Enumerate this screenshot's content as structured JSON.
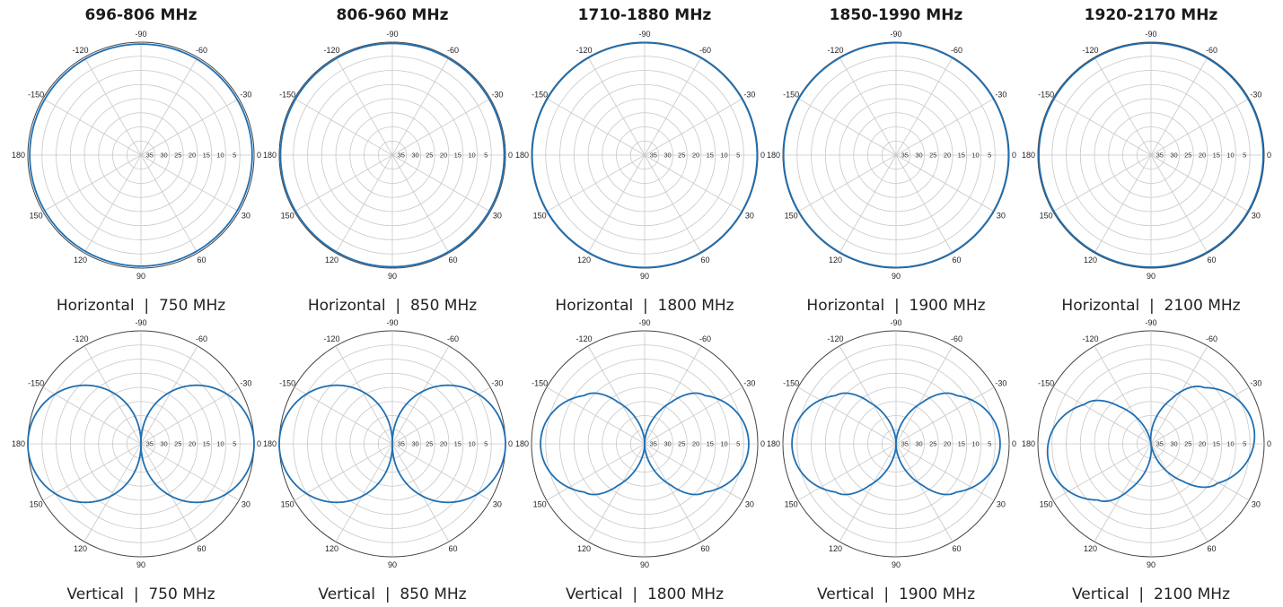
{
  "style": {
    "trace_color": "#1f6fb3",
    "grid_color": "#c8c8c8",
    "outer_ring_color": "#444444",
    "text_color": "#222222"
  },
  "bands": [
    "696-806 MHz",
    "806-960 MHz",
    "1710-1880 MHz",
    "1850-1990 MHz",
    "1920-2170 MHz"
  ],
  "captions": {
    "horizontal": [
      "Horizontal  |  750 MHz",
      "Horizontal  |  850 MHz",
      "Horizontal  |  1800 MHz",
      "Horizontal  |  1900 MHz",
      "Horizontal  |  2100 MHz"
    ],
    "vertical": [
      "Vertical  |  750 MHz",
      "Vertical  |  850 MHz",
      "Vertical  |  1800 MHz",
      "Vertical  |  1900 MHz",
      "Vertical  |  2100 MHz"
    ]
  },
  "chart_data": {
    "type": "polar-line",
    "radial_axis": {
      "ticks": [
        "35",
        "30",
        "25",
        "20",
        "15",
        "10",
        "5",
        "0"
      ],
      "range": [
        35,
        0
      ],
      "unit_note": "attenuation rings, 0 at outer edge"
    },
    "angular_axis": {
      "ticks": [
        "-90",
        "-60",
        "-30",
        "0",
        "30",
        "60",
        "90",
        "120",
        "150",
        "180",
        "-150",
        "-120"
      ],
      "zero_direction": "right",
      "direction": "clockwise"
    },
    "grid": true,
    "panels": [
      {
        "row": "horizontal",
        "band": "696-806 MHz",
        "freq": "750 MHz",
        "pattern": "omni",
        "attenuation_db": 0.6
      },
      {
        "row": "horizontal",
        "band": "806-960 MHz",
        "freq": "850 MHz",
        "pattern": "omni",
        "attenuation_db": 0.4
      },
      {
        "row": "horizontal",
        "band": "1710-1880 MHz",
        "freq": "1800 MHz",
        "pattern": "omni",
        "attenuation_db": 0.2
      },
      {
        "row": "horizontal",
        "band": "1850-1990 MHz",
        "freq": "1900 MHz",
        "pattern": "omni",
        "attenuation_db": 0.2
      },
      {
        "row": "horizontal",
        "band": "1920-2170 MHz",
        "freq": "2100 MHz",
        "pattern": "omni",
        "attenuation_db": 0.3
      },
      {
        "row": "vertical",
        "band": "696-806 MHz",
        "freq": "750 MHz",
        "pattern": "dipole",
        "lobes": 2,
        "null_axis_deg": 90,
        "tilt_deg": 0
      },
      {
        "row": "vertical",
        "band": "806-960 MHz",
        "freq": "850 MHz",
        "pattern": "dipole",
        "lobes": 2,
        "null_axis_deg": 90,
        "tilt_deg": 0
      },
      {
        "row": "vertical",
        "band": "1710-1880 MHz",
        "freq": "1800 MHz",
        "pattern": "multilobe",
        "lobes": 6,
        "null_axis_deg": 90,
        "tilt_deg": 0
      },
      {
        "row": "vertical",
        "band": "1850-1990 MHz",
        "freq": "1900 MHz",
        "pattern": "multilobe",
        "lobes": 6,
        "null_axis_deg": 90,
        "tilt_deg": 0
      },
      {
        "row": "vertical",
        "band": "1920-2170 MHz",
        "freq": "2100 MHz",
        "pattern": "multilobe",
        "lobes": 6,
        "null_axis_deg": 90,
        "tilt_deg": 8
      }
    ]
  }
}
